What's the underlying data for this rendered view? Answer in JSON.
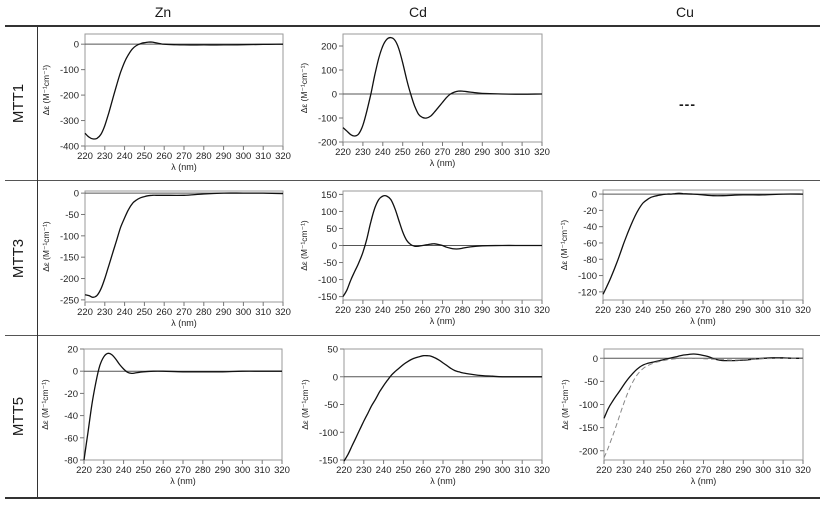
{
  "figure": {
    "columns": [
      "Zn",
      "Cd",
      "Cu"
    ],
    "rows": [
      "MTT1",
      "MTT3",
      "MTT5"
    ],
    "missing_placeholder": "---",
    "ylabel": "Δε (M⁻¹cm⁻¹)",
    "xlabel": "λ (nm)"
  },
  "chart_data": [
    {
      "type": "line",
      "row": "MTT1",
      "col": "Zn",
      "title": "MTT1 Zn",
      "xlabel": "λ (nm)",
      "ylabel": "Δε (M⁻¹cm⁻¹)",
      "xlim": [
        220,
        320
      ],
      "ylim": [
        -400,
        40
      ],
      "xticks": [
        220,
        230,
        240,
        250,
        260,
        270,
        280,
        290,
        300,
        310,
        320
      ],
      "yticks": [
        0,
        -100,
        -200,
        -300,
        -400
      ],
      "frame": [
        85,
        34,
        283,
        146
      ],
      "series": [
        {
          "name": "MTT1-Zn",
          "style": "solid",
          "x": [
            220,
            222,
            224,
            226,
            228,
            230,
            232,
            234,
            236,
            238,
            240,
            242,
            244,
            246,
            248,
            250,
            252,
            254,
            256,
            258,
            260,
            265,
            270,
            280,
            290,
            300,
            310,
            320
          ],
          "y": [
            -350,
            -365,
            -372,
            -370,
            -355,
            -320,
            -270,
            -215,
            -160,
            -110,
            -70,
            -40,
            -18,
            -5,
            2,
            6,
            8,
            8,
            5,
            2,
            0,
            -2,
            -3,
            -3,
            -3,
            -2,
            -1,
            0
          ]
        }
      ]
    },
    {
      "type": "line",
      "row": "MTT1",
      "col": "Cd",
      "title": "MTT1 Cd",
      "xlabel": "λ (nm)",
      "ylabel": "Δε (M⁻¹cm⁻¹)",
      "xlim": [
        220,
        320
      ],
      "ylim": [
        -200,
        250
      ],
      "xticks": [
        220,
        230,
        240,
        250,
        260,
        270,
        280,
        290,
        300,
        310,
        320
      ],
      "yticks": [
        200,
        100,
        0,
        -100,
        -200
      ],
      "frame": [
        343,
        34,
        542,
        142
      ],
      "series": [
        {
          "name": "MTT1-Cd",
          "style": "solid",
          "x": [
            220,
            222,
            224,
            226,
            228,
            230,
            232,
            234,
            236,
            238,
            240,
            242,
            244,
            246,
            248,
            250,
            252,
            254,
            256,
            258,
            260,
            262,
            264,
            266,
            268,
            270,
            272,
            274,
            276,
            278,
            280,
            284,
            288,
            292,
            300,
            310,
            320
          ],
          "y": [
            -140,
            -155,
            -170,
            -175,
            -165,
            -130,
            -70,
            0,
            80,
            150,
            200,
            228,
            235,
            225,
            190,
            130,
            60,
            0,
            -50,
            -85,
            -98,
            -100,
            -92,
            -75,
            -55,
            -35,
            -15,
            0,
            8,
            12,
            12,
            8,
            4,
            2,
            0,
            -1,
            0
          ]
        }
      ]
    },
    {
      "type": "line",
      "row": "MTT3",
      "col": "Zn",
      "title": "MTT3 Zn",
      "xlabel": "λ (nm)",
      "ylabel": "Δε (M⁻¹cm⁻¹)",
      "xlim": [
        220,
        320
      ],
      "ylim": [
        -255,
        5
      ],
      "xticks": [
        220,
        230,
        240,
        250,
        260,
        270,
        280,
        290,
        300,
        310,
        320
      ],
      "yticks": [
        0,
        -50,
        -100,
        -150,
        -200,
        -250
      ],
      "frame": [
        85,
        191,
        283,
        302
      ],
      "series": [
        {
          "name": "MTT3-Zn",
          "style": "solid",
          "x": [
            220,
            222,
            224,
            226,
            228,
            230,
            232,
            234,
            236,
            238,
            240,
            242,
            244,
            246,
            248,
            250,
            252,
            254,
            256,
            260,
            270,
            280,
            290,
            300,
            310,
            320
          ],
          "y": [
            -238,
            -240,
            -244,
            -240,
            -225,
            -200,
            -170,
            -140,
            -110,
            -80,
            -58,
            -38,
            -24,
            -16,
            -11,
            -8,
            -6,
            -5,
            -5,
            -5,
            -5,
            -2,
            0,
            0,
            0,
            -1
          ]
        }
      ]
    },
    {
      "type": "line",
      "row": "MTT3",
      "col": "Cd",
      "title": "MTT3 Cd",
      "xlabel": "λ (nm)",
      "ylabel": "Δε (M⁻¹cm⁻¹)",
      "xlim": [
        220,
        320
      ],
      "ylim": [
        -160,
        160
      ],
      "xticks": [
        220,
        230,
        240,
        250,
        260,
        270,
        280,
        290,
        300,
        310,
        320
      ],
      "yticks": [
        150,
        100,
        50,
        0,
        -50,
        -100,
        -150
      ],
      "frame": [
        343,
        191,
        542,
        300
      ],
      "series": [
        {
          "name": "MTT3-Cd",
          "style": "solid",
          "x": [
            220,
            222,
            224,
            226,
            228,
            230,
            232,
            234,
            236,
            238,
            240,
            242,
            244,
            246,
            248,
            250,
            252,
            254,
            256,
            258,
            260,
            262,
            264,
            266,
            268,
            270,
            272,
            274,
            276,
            278,
            280,
            284,
            290,
            300,
            310,
            320
          ],
          "y": [
            -150,
            -130,
            -100,
            -75,
            -50,
            -20,
            20,
            70,
            110,
            135,
            145,
            145,
            135,
            110,
            75,
            40,
            15,
            3,
            -2,
            -2,
            0,
            2,
            4,
            5,
            3,
            0,
            -5,
            -8,
            -10,
            -10,
            -8,
            -4,
            -1,
            0,
            0,
            0
          ]
        }
      ]
    },
    {
      "type": "line",
      "row": "MTT3",
      "col": "Cu",
      "title": "MTT3 Cu",
      "xlabel": "λ (nm)",
      "ylabel": "Δε (M⁻¹cm⁻¹)",
      "xlim": [
        220,
        320
      ],
      "ylim": [
        -130,
        5
      ],
      "xticks": [
        220,
        230,
        240,
        250,
        260,
        270,
        280,
        290,
        300,
        310,
        320
      ],
      "yticks": [
        0,
        -20,
        -40,
        -60,
        -80,
        -100,
        -120
      ],
      "frame": [
        603,
        190,
        803,
        300
      ],
      "series": [
        {
          "name": "MTT3-Cu",
          "style": "solid",
          "x": [
            220,
            222,
            224,
            226,
            228,
            230,
            232,
            234,
            236,
            238,
            240,
            242,
            244,
            246,
            248,
            250,
            252,
            254,
            256,
            258,
            260,
            265,
            270,
            275,
            280,
            290,
            300,
            310,
            320
          ],
          "y": [
            -123,
            -113,
            -102,
            -90,
            -77,
            -63,
            -50,
            -38,
            -27,
            -18,
            -11,
            -7,
            -4,
            -2.5,
            -1.5,
            -0.5,
            0,
            0,
            0.5,
            1,
            0.5,
            0,
            -1,
            -2,
            -2,
            -1,
            -1,
            0,
            0
          ]
        }
      ]
    },
    {
      "type": "line",
      "row": "MTT5",
      "col": "Zn",
      "title": "MTT5 Zn",
      "xlabel": "λ (nm)",
      "ylabel": "Δε (M⁻¹cm⁻¹)",
      "xlim": [
        220,
        320
      ],
      "ylim": [
        -80,
        20
      ],
      "xticks": [
        220,
        230,
        240,
        250,
        260,
        270,
        280,
        290,
        300,
        310,
        320
      ],
      "yticks": [
        20,
        0,
        -20,
        -40,
        -60,
        -80
      ],
      "frame": [
        84,
        349,
        282,
        460
      ],
      "series": [
        {
          "name": "MTT5-Zn",
          "style": "solid",
          "x": [
            220,
            222,
            224,
            226,
            228,
            230,
            232,
            234,
            236,
            238,
            240,
            242,
            244,
            246,
            248,
            250,
            255,
            260,
            270,
            280,
            290,
            300,
            310,
            320
          ],
          "y": [
            -80,
            -55,
            -30,
            -10,
            5,
            13,
            16,
            15,
            11,
            6,
            2,
            -1,
            -2,
            -1.5,
            -1,
            -0.5,
            0,
            0,
            -0.5,
            -0.5,
            -0.5,
            0,
            0,
            0
          ]
        }
      ]
    },
    {
      "type": "line",
      "row": "MTT5",
      "col": "Cd",
      "title": "MTT5 Cd",
      "xlabel": "λ (nm)",
      "ylabel": "Δε (M⁻¹cm⁻¹)",
      "xlim": [
        220,
        320
      ],
      "ylim": [
        -150,
        50
      ],
      "xticks": [
        220,
        230,
        240,
        250,
        260,
        270,
        280,
        290,
        300,
        310,
        320
      ],
      "yticks": [
        50,
        0,
        -50,
        -100,
        -150
      ],
      "frame": [
        344,
        349,
        542,
        460
      ],
      "series": [
        {
          "name": "MTT5-Cd",
          "style": "solid",
          "x": [
            220,
            222,
            224,
            226,
            228,
            230,
            232,
            234,
            236,
            238,
            240,
            242,
            244,
            246,
            248,
            250,
            252,
            254,
            256,
            258,
            260,
            262,
            264,
            266,
            268,
            270,
            272,
            274,
            276,
            278,
            280,
            285,
            290,
            295,
            300,
            310,
            320
          ],
          "y": [
            -152,
            -140,
            -125,
            -110,
            -95,
            -80,
            -66,
            -52,
            -40,
            -27,
            -16,
            -6,
            3,
            10,
            16,
            22,
            27,
            31,
            34,
            36,
            38,
            38,
            37,
            34,
            30,
            25,
            20,
            15,
            11,
            9,
            7,
            4,
            2,
            1,
            0,
            0,
            0
          ]
        }
      ]
    },
    {
      "type": "line",
      "row": "MTT5",
      "col": "Cu",
      "title": "MTT5 Cu",
      "xlabel": "λ (nm)",
      "ylabel": "Δε (M⁻¹cm⁻¹)",
      "xlim": [
        220,
        320
      ],
      "ylim": [
        -220,
        20
      ],
      "xticks": [
        220,
        230,
        240,
        250,
        260,
        270,
        280,
        290,
        300,
        310,
        320
      ],
      "yticks": [
        0,
        -50,
        -100,
        -150,
        -200
      ],
      "frame": [
        604,
        349,
        803,
        460
      ],
      "series": [
        {
          "name": "MTT5-Cu (solid)",
          "style": "solid",
          "x": [
            220,
            222,
            224,
            226,
            228,
            230,
            232,
            234,
            236,
            238,
            240,
            242,
            244,
            246,
            248,
            250,
            252,
            254,
            256,
            258,
            260,
            262,
            264,
            266,
            268,
            270,
            272,
            274,
            276,
            278,
            280,
            285,
            290,
            295,
            300,
            305,
            310,
            315,
            320
          ],
          "y": [
            -130,
            -110,
            -95,
            -82,
            -70,
            -57,
            -45,
            -35,
            -26,
            -19,
            -14,
            -11,
            -9,
            -7,
            -5,
            -3,
            -1,
            1,
            3,
            5,
            7,
            8,
            9,
            9,
            8,
            6,
            4,
            1,
            -2,
            -4,
            -5,
            -5,
            -4,
            -2,
            0,
            1,
            1,
            0,
            0
          ]
        },
        {
          "name": "MTT5-Cu (dashed)",
          "style": "dashed",
          "x": [
            220,
            222,
            224,
            226,
            228,
            230,
            232,
            234,
            236,
            238,
            240,
            242,
            244,
            246,
            248,
            250,
            252,
            254,
            256,
            258,
            260,
            265,
            270,
            275,
            280,
            285,
            290,
            295,
            300,
            310,
            320
          ],
          "y": [
            -215,
            -195,
            -172,
            -148,
            -122,
            -97,
            -74,
            -55,
            -40,
            -29,
            -21,
            -16,
            -12,
            -9,
            -7,
            -5,
            -3,
            -2,
            -1,
            0,
            0,
            0,
            -1,
            -2,
            -3,
            -4,
            -3,
            -2,
            -1,
            0,
            0
          ]
        }
      ]
    }
  ]
}
